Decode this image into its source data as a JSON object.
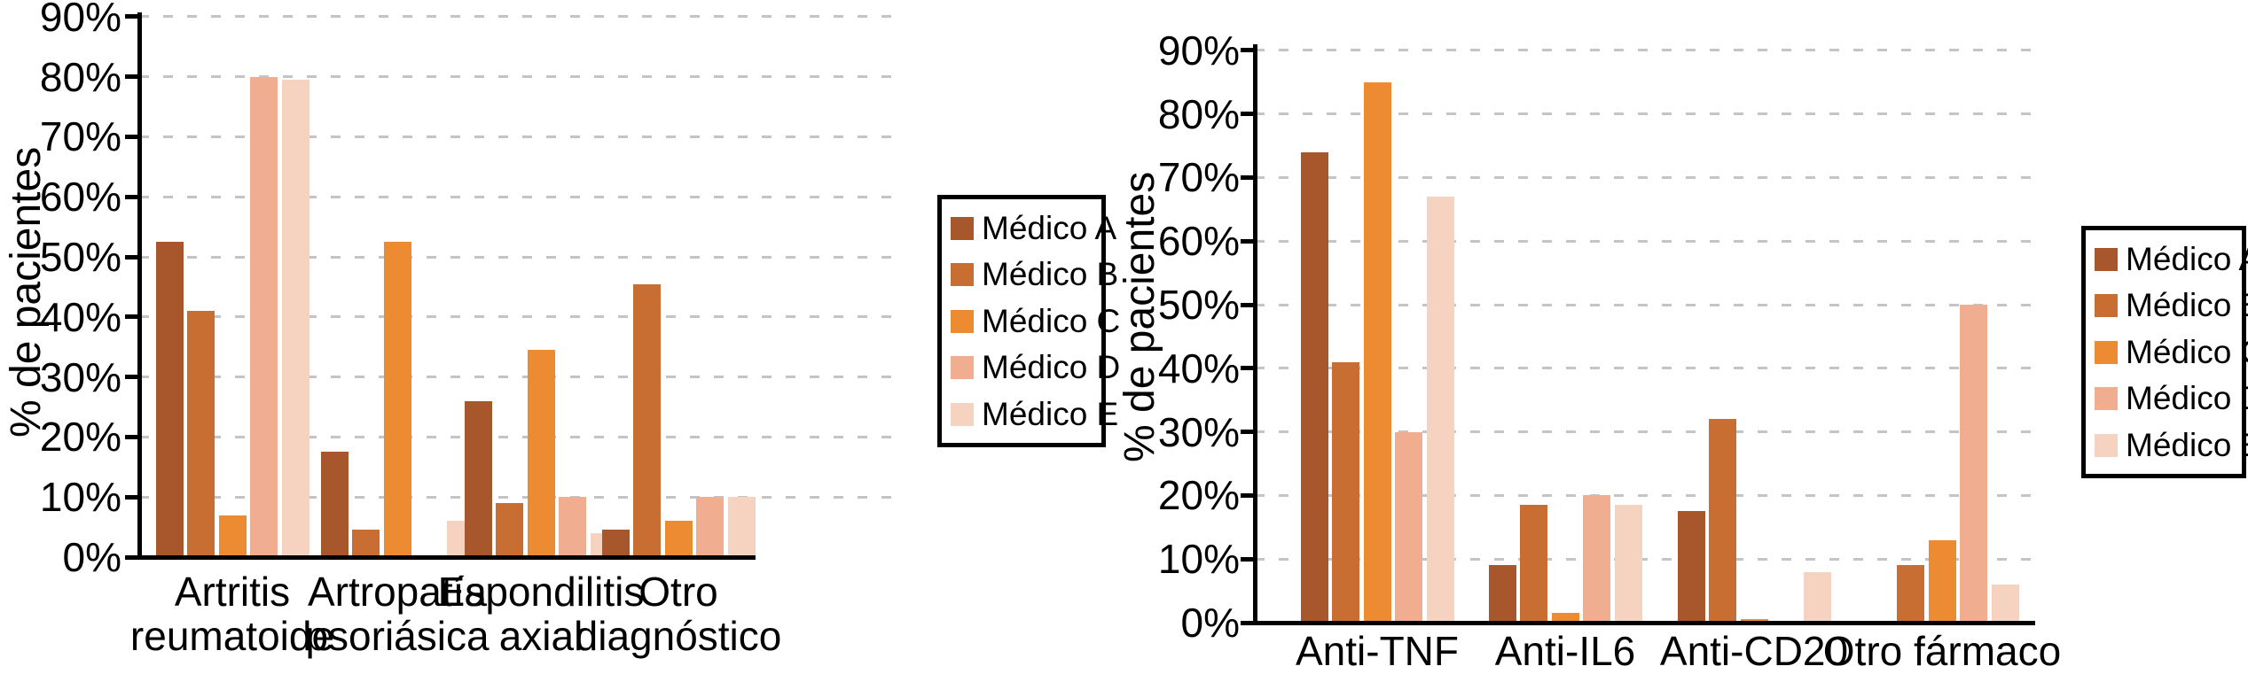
{
  "page": {
    "background": "#ffffff"
  },
  "legend": {
    "entries": [
      "Médico A",
      "Médico B",
      "Médico C",
      "Médico D",
      "Médico E"
    ]
  },
  "palette": {
    "medico_a": "#A7572B",
    "medico_b": "#C86E32",
    "medico_c": "#ED8B33",
    "medico_d": "#F0AD8F",
    "medico_e": "#F6D3C1"
  },
  "chart_data": [
    {
      "type": "bar",
      "title": "",
      "ylabel": "% de pacientes",
      "ylim": [
        0,
        90
      ],
      "ytick_step": 10,
      "yticks": [
        "0%",
        "10%",
        "20%",
        "30%",
        "40%",
        "50%",
        "60%",
        "70%",
        "80%",
        "90%"
      ],
      "grid": "horizontal-dashed",
      "legend_position": "right-of-plot",
      "categories": [
        "Artritis reumatoide",
        "Artropatía psoriásica",
        "Espondilitis axial",
        "Otro diagnóstico"
      ],
      "category_lines": [
        [
          "Artritis",
          "reumatoide"
        ],
        [
          "Artropatía",
          "psoriásica"
        ],
        [
          "Espondilitis",
          "axial"
        ],
        [
          "Otro",
          "diagnóstico"
        ]
      ],
      "series": [
        {
          "name": "Médico A",
          "color": "#A7572B",
          "values": [
            52.5,
            17.5,
            26,
            4.5
          ]
        },
        {
          "name": "Médico B",
          "color": "#C86E32",
          "values": [
            41,
            4.5,
            9,
            45.5
          ]
        },
        {
          "name": "Médico C",
          "color": "#ED8B33",
          "values": [
            7,
            52.5,
            34.5,
            6
          ]
        },
        {
          "name": "Médico D",
          "color": "#F0AD8F",
          "values": [
            80,
            0,
            10,
            10
          ]
        },
        {
          "name": "Médico E",
          "color": "#F6D3C1",
          "values": [
            79.5,
            6,
            4,
            10
          ]
        }
      ]
    },
    {
      "type": "bar",
      "title": "",
      "ylabel": "% de pacientes",
      "ylim": [
        0,
        90
      ],
      "ytick_step": 10,
      "yticks": [
        "0%",
        "10%",
        "20%",
        "30%",
        "40%",
        "50%",
        "60%",
        "70%",
        "80%",
        "90%"
      ],
      "grid": "horizontal-dashed",
      "legend_position": "right-of-plot",
      "categories": [
        "Anti-TNF",
        "Anti-IL6",
        "Anti-CD20",
        "Otro fármaco"
      ],
      "category_lines": [
        [
          "Anti-TNF"
        ],
        [
          "Anti-IL6"
        ],
        [
          "Anti-CD20"
        ],
        [
          "Otro fármaco"
        ]
      ],
      "series": [
        {
          "name": "Médico A",
          "color": "#A7572B",
          "values": [
            74,
            9,
            17.5,
            0
          ]
        },
        {
          "name": "Médico B",
          "color": "#C86E32",
          "values": [
            41,
            18.5,
            32,
            9
          ]
        },
        {
          "name": "Médico C",
          "color": "#ED8B33",
          "values": [
            85,
            1.5,
            0.5,
            13
          ]
        },
        {
          "name": "Médico D",
          "color": "#F0AD8F",
          "values": [
            30,
            20,
            0,
            50
          ]
        },
        {
          "name": "Médico E",
          "color": "#F6D3C1",
          "values": [
            67,
            18.5,
            8,
            6
          ]
        }
      ]
    }
  ]
}
